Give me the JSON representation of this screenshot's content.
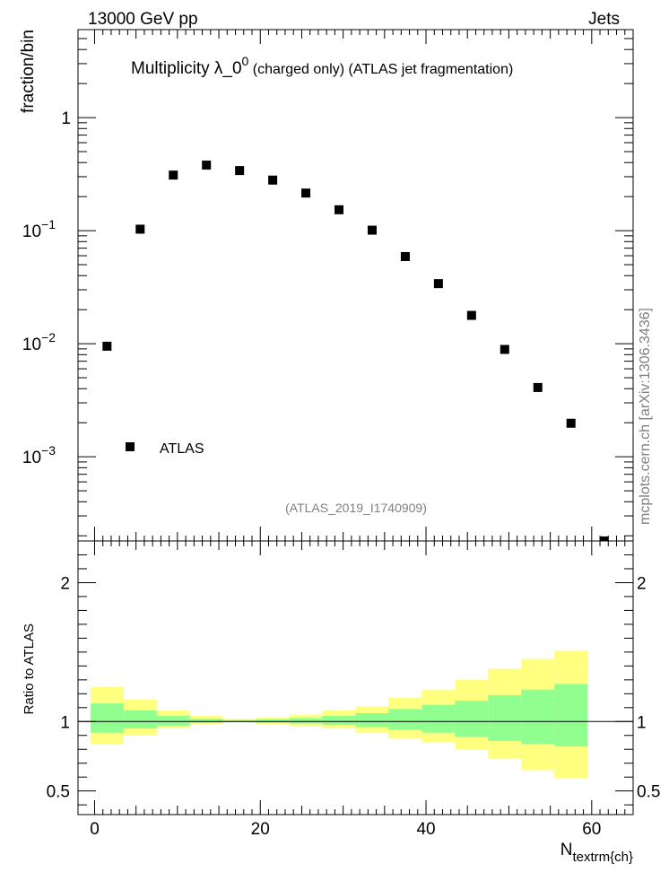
{
  "header": {
    "energy_label": "13000 GeV pp",
    "category_label": "Jets"
  },
  "watermark": {
    "analysis_id": "(ATLAS_2019_I1740909)",
    "source": "mcplots.cern.ch [arXiv:1306.3436]"
  },
  "chart_data": [
    {
      "type": "scatter",
      "title": "Multiplicity  λ_0⁰ (charged only) (ATLAS jet fragmentation)",
      "title_main": "Multiplicity  λ_0",
      "title_sup": "0",
      "title_rest": " (charged only) (ATLAS jet fragmentation)",
      "ylabel": "fraction/bin",
      "yscale": "log",
      "ylim": [
        0.00018,
        6.0
      ],
      "xlim": [
        -2,
        65
      ],
      "y_ticks": [
        {
          "value": 1,
          "label": "1"
        },
        {
          "value": 0.1,
          "label": "10",
          "exp": "−1"
        },
        {
          "value": 0.01,
          "label": "10",
          "exp": "−2"
        },
        {
          "value": 0.001,
          "label": "10",
          "exp": "−3"
        }
      ],
      "series": [
        {
          "name": "ATLAS",
          "marker": "square",
          "color": "#000000",
          "x": [
            1.5,
            5.5,
            9.5,
            13.5,
            17.5,
            21.5,
            25.5,
            29.5,
            33.5,
            37.5,
            41.5,
            45.5,
            49.5,
            53.5,
            57.5,
            61.5
          ],
          "y": [
            0.0095,
            0.103,
            0.31,
            0.38,
            0.34,
            0.28,
            0.215,
            0.153,
            0.101,
            0.059,
            0.034,
            0.0178,
            0.0089,
            0.0041,
            0.00198,
            0.00018
          ]
        }
      ],
      "legend": {
        "position": "bottom-left",
        "label": "ATLAS"
      }
    },
    {
      "type": "area",
      "ylabel": "Ratio to ATLAS",
      "xlabel": "N",
      "xlabel_sub": "textrm{ch}",
      "ylim": [
        0.33,
        2.3
      ],
      "xlim": [
        -2,
        65
      ],
      "x_ticks": [
        0,
        20,
        40,
        60
      ],
      "y_ticks": [
        {
          "value": 0.5,
          "label": "0.5"
        },
        {
          "value": 1,
          "label": "1"
        },
        {
          "value": 2,
          "label": "2"
        }
      ],
      "bins": [
        -0.5,
        3.5,
        7.5,
        11.5,
        15.5,
        19.5,
        23.5,
        27.5,
        31.5,
        35.5,
        39.5,
        43.5,
        47.5,
        51.5,
        55.5,
        59.5
      ],
      "band_outer": {
        "color": "#ffff80",
        "lower": [
          0.84,
          0.9,
          0.95,
          0.98,
          0.99,
          0.98,
          0.97,
          0.95,
          0.92,
          0.88,
          0.85,
          0.8,
          0.73,
          0.65,
          0.59
        ],
        "upper": [
          1.25,
          1.16,
          1.08,
          1.04,
          1.02,
          1.03,
          1.05,
          1.08,
          1.11,
          1.17,
          1.23,
          1.3,
          1.38,
          1.45,
          1.51
        ]
      },
      "band_inner": {
        "color": "#90ff90",
        "lower": [
          0.92,
          0.95,
          0.97,
          0.99,
          0.995,
          0.99,
          0.985,
          0.975,
          0.96,
          0.94,
          0.92,
          0.89,
          0.86,
          0.84,
          0.82
        ],
        "upper": [
          1.13,
          1.08,
          1.04,
          1.02,
          1.01,
          1.015,
          1.025,
          1.04,
          1.06,
          1.09,
          1.12,
          1.15,
          1.19,
          1.23,
          1.27
        ]
      },
      "reference_line": 1
    }
  ]
}
